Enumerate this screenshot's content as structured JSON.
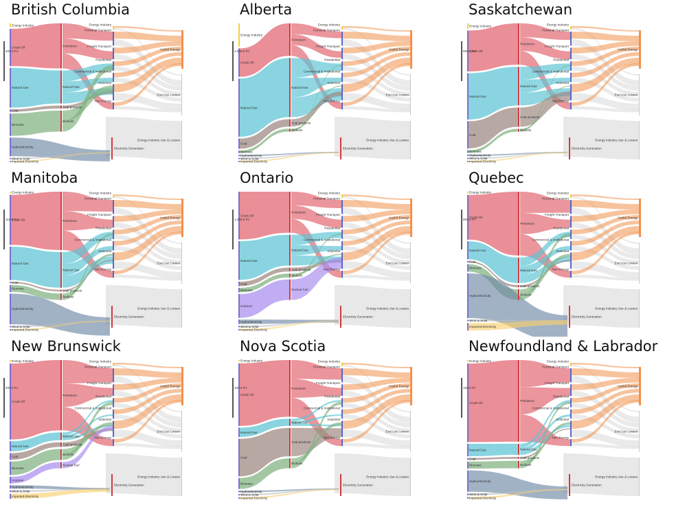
{
  "colors": {
    "energy_industry": "#f2d13b",
    "crude_oil": "#e2636f",
    "natural_gas": "#5bc4d4",
    "coal": "#9c8680",
    "biomass": "#7fb27f",
    "uranium": "#a98ef0",
    "hydroelectricity": "#6e88a6",
    "wind_solar": "#bfbfbf",
    "imported_electricity": "#f8cf6e",
    "electricity_generation": "#f8cf6e",
    "useful_energy": "#f1914d",
    "losses": "#d8d8d8"
  },
  "panels": [
    {
      "title": "British Columbia",
      "scale": "400.0 PJ",
      "sources": [
        {
          "key": "energy_industry",
          "label": "Energy Industry",
          "v": 3
        },
        {
          "key": "crude_oil",
          "label": "Crude Oil",
          "v": 30
        },
        {
          "key": "natural_gas",
          "label": "Natural Gas",
          "v": 32
        },
        {
          "key": "coal",
          "label": "Coal",
          "v": 2
        },
        {
          "key": "biomass",
          "label": "Biomass",
          "v": 18
        },
        {
          "key": "hydroelectricity",
          "label": "Hydroelectricity",
          "v": 15
        },
        {
          "key": "wind_solar",
          "label": "Wind & Solar",
          "v": 1
        },
        {
          "key": "imported_electricity",
          "label": "Imported Electricity",
          "v": 1
        }
      ],
      "mids": [
        {
          "key": "crude_oil",
          "label": "Petroleum",
          "v": 30
        },
        {
          "key": "natural_gas",
          "label": "Natural Gas",
          "v": 22
        },
        {
          "key": "coal",
          "label": "Coal products",
          "v": 2
        },
        {
          "key": "biomass",
          "label": "Biofuels",
          "v": 14
        }
      ]
    },
    {
      "title": "Alberta",
      "scale": "2,000.0 PJ",
      "sources": [
        {
          "key": "energy_industry",
          "label": "Energy Industry",
          "v": 18
        },
        {
          "key": "crude_oil",
          "label": "Crude Oil",
          "v": 22
        },
        {
          "key": "natural_gas",
          "label": "Natural Gas",
          "v": 45
        },
        {
          "key": "coal",
          "label": "Coal",
          "v": 8
        },
        {
          "key": "biomass",
          "label": "Biomass",
          "v": 2
        },
        {
          "key": "hydroelectricity",
          "label": "Hydroelectricity",
          "v": 1
        },
        {
          "key": "wind_solar",
          "label": "Wind & Solar",
          "v": 1
        },
        {
          "key": "imported_electricity",
          "label": "Imported Electricity",
          "v": 1
        }
      ],
      "mids": [
        {
          "key": "crude_oil",
          "label": "Petroleum",
          "v": 22
        },
        {
          "key": "natural_gas",
          "label": "Natural Gas",
          "v": 40
        },
        {
          "key": "coal",
          "label": "Coal products",
          "v": 5
        },
        {
          "key": "biomass",
          "label": "Biofuels",
          "v": 2
        }
      ]
    },
    {
      "title": "Saskatchewan",
      "scale": "800.0 PJ",
      "sources": [
        {
          "key": "energy_industry",
          "label": "Energy Industry",
          "v": 4
        },
        {
          "key": "crude_oil",
          "label": "Crude Oil",
          "v": 30
        },
        {
          "key": "natural_gas",
          "label": "Natural Gas",
          "v": 34
        },
        {
          "key": "coal",
          "label": "Coal",
          "v": 20
        },
        {
          "key": "biomass",
          "label": "Biomass",
          "v": 2
        },
        {
          "key": "hydroelectricity",
          "label": "Hydroelectricity",
          "v": 1
        },
        {
          "key": "wind_solar",
          "label": "Wind & Solar",
          "v": 1
        },
        {
          "key": "imported_electricity",
          "label": "Imported Electricity",
          "v": 1
        }
      ],
      "mids": [
        {
          "key": "crude_oil",
          "label": "Petroleum",
          "v": 30
        },
        {
          "key": "natural_gas",
          "label": "Natural Gas",
          "v": 28
        },
        {
          "key": "coal",
          "label": "Coal products",
          "v": 14
        },
        {
          "key": "biomass",
          "label": "Biofuels",
          "v": 2
        }
      ]
    },
    {
      "title": "Manitoba",
      "scale": "110.0 PJ",
      "sources": [
        {
          "key": "energy_industry",
          "label": "Energy Industry",
          "v": 1
        },
        {
          "key": "crude_oil",
          "label": "Crude Oil",
          "v": 36
        },
        {
          "key": "natural_gas",
          "label": "Natural Gas",
          "v": 24
        },
        {
          "key": "coal",
          "label": "Coal",
          "v": 1
        },
        {
          "key": "biomass",
          "label": "Biomass",
          "v": 5
        },
        {
          "key": "hydroelectricity",
          "label": "Hydroelectricity",
          "v": 22
        },
        {
          "key": "wind_solar",
          "label": "Wind & Solar",
          "v": 1
        },
        {
          "key": "imported_electricity",
          "label": "Imported Electricity",
          "v": 1
        }
      ],
      "mids": [
        {
          "key": "crude_oil",
          "label": "Petroleum",
          "v": 36
        },
        {
          "key": "natural_gas",
          "label": "Natural Gas",
          "v": 22
        },
        {
          "key": "coal",
          "label": "Coal products",
          "v": 1
        },
        {
          "key": "biomass",
          "label": "Biofuels",
          "v": 4
        }
      ]
    },
    {
      "title": "Ontario",
      "scale": "1,000.0 PJ",
      "sources": [
        {
          "key": "crude_oil",
          "label": "Crude Oil",
          "v": 32
        },
        {
          "key": "natural_gas",
          "label": "Natural Gas",
          "v": 26
        },
        {
          "key": "coal",
          "label": "Coal",
          "v": 3
        },
        {
          "key": "biomass",
          "label": "Biomass",
          "v": 3
        },
        {
          "key": "uranium",
          "label": "Uranium",
          "v": 16
        },
        {
          "key": "hydroelectricity",
          "label": "Hydroelectricity",
          "v": 3
        },
        {
          "key": "wind_solar",
          "label": "Wind & Solar",
          "v": 1
        },
        {
          "key": "imported_electricity",
          "label": "Imported Electricity",
          "v": 1
        }
      ],
      "mids": [
        {
          "key": "crude_oil",
          "label": "Petroleum",
          "v": 32
        },
        {
          "key": "natural_gas",
          "label": "Natural Gas",
          "v": 24
        },
        {
          "key": "coal",
          "label": "Coal products",
          "v": 3
        },
        {
          "key": "biomass",
          "label": "Biofuels",
          "v": 3
        },
        {
          "key": "uranium",
          "label": "Nuclear fuel",
          "v": 16
        }
      ]
    },
    {
      "title": "Quebec",
      "scale": "800.0 PJ",
      "sources": [
        {
          "key": "energy_industry",
          "label": "Energy Industry",
          "v": 1
        },
        {
          "key": "crude_oil",
          "label": "Crude Oil",
          "v": 30
        },
        {
          "key": "natural_gas",
          "label": "Natural Gas",
          "v": 12
        },
        {
          "key": "coal",
          "label": "Coal",
          "v": 1
        },
        {
          "key": "biomass",
          "label": "Biomass",
          "v": 5
        },
        {
          "key": "hydroelectricity",
          "label": "Hydroelectricity",
          "v": 30
        },
        {
          "key": "wind_solar",
          "label": "Wind & Solar",
          "v": 1
        },
        {
          "key": "imported_electricity",
          "label": "Imported Electricity",
          "v": 5
        }
      ],
      "mids": [
        {
          "key": "crude_oil",
          "label": "Petroleum",
          "v": 30
        },
        {
          "key": "natural_gas",
          "label": "Natural Gas",
          "v": 12
        },
        {
          "key": "coal",
          "label": "Coal products",
          "v": 1
        },
        {
          "key": "biomass",
          "label": "Biofuels",
          "v": 5
        }
      ]
    },
    {
      "title": "New Brunswick",
      "scale": "200.0 PJ",
      "sources": [
        {
          "key": "energy_industry",
          "label": "Energy Industry",
          "v": 1
        },
        {
          "key": "crude_oil",
          "label": "Crude Oil",
          "v": 45
        },
        {
          "key": "natural_gas",
          "label": "Natural Gas",
          "v": 6
        },
        {
          "key": "coal",
          "label": "Coal",
          "v": 4
        },
        {
          "key": "biomass",
          "label": "Biomass",
          "v": 8
        },
        {
          "key": "uranium",
          "label": "Uranium",
          "v": 4
        },
        {
          "key": "hydroelectricity",
          "label": "Hydroelectricity",
          "v": 2
        },
        {
          "key": "wind_solar",
          "label": "Wind & Solar",
          "v": 1
        },
        {
          "key": "imported_electricity",
          "label": "Imported Electricity",
          "v": 3
        }
      ],
      "mids": [
        {
          "key": "crude_oil",
          "label": "Petroleum",
          "v": 45
        },
        {
          "key": "natural_gas",
          "label": "Natural Gas",
          "v": 5
        },
        {
          "key": "coal",
          "label": "Coal products",
          "v": 3
        },
        {
          "key": "biomass",
          "label": "Biofuels",
          "v": 7
        },
        {
          "key": "uranium",
          "label": "Nuclear fuel",
          "v": 4
        }
      ]
    },
    {
      "title": "Nova Scotia",
      "scale": "100.0 PJ",
      "sources": [
        {
          "key": "energy_industry",
          "label": "Energy Industry",
          "v": 1
        },
        {
          "key": "crude_oil",
          "label": "Crude Oil",
          "v": 40
        },
        {
          "key": "natural_gas",
          "label": "Natural Gas",
          "v": 6
        },
        {
          "key": "coal",
          "label": "Coal",
          "v": 24
        },
        {
          "key": "biomass",
          "label": "Biomass",
          "v": 7
        },
        {
          "key": "hydroelectricity",
          "label": "Hydroelectricity",
          "v": 1
        },
        {
          "key": "wind_solar",
          "label": "Wind & Solar",
          "v": 1
        },
        {
          "key": "imported_electricity",
          "label": "Imported Electricity",
          "v": 1
        }
      ],
      "mids": [
        {
          "key": "crude_oil",
          "label": "Petroleum",
          "v": 40
        },
        {
          "key": "natural_gas",
          "label": "Natural Gas",
          "v": 5
        },
        {
          "key": "coal",
          "label": "Coal products",
          "v": 20
        },
        {
          "key": "biomass",
          "label": "Biofuels",
          "v": 7
        }
      ]
    },
    {
      "title": "Newfoundland & Labrador",
      "scale": "100.0 PJ",
      "sources": [
        {
          "key": "energy_industry",
          "label": "Energy Industry",
          "v": 1
        },
        {
          "key": "crude_oil",
          "label": "Crude Oil",
          "v": 44
        },
        {
          "key": "natural_gas",
          "label": "Natural Gas",
          "v": 7
        },
        {
          "key": "coal",
          "label": "Coal",
          "v": 1
        },
        {
          "key": "biomass",
          "label": "Biomass",
          "v": 4
        },
        {
          "key": "hydroelectricity",
          "label": "Hydroelectricity",
          "v": 12
        },
        {
          "key": "wind_solar",
          "label": "Wind & Solar",
          "v": 1
        },
        {
          "key": "imported_electricity",
          "label": "Imported Electricity",
          "v": 1
        }
      ],
      "mids": [
        {
          "key": "crude_oil",
          "label": "Petroleum",
          "v": 44
        },
        {
          "key": "natural_gas",
          "label": "Natural Gas",
          "v": 6
        },
        {
          "key": "coal",
          "label": "Coal products",
          "v": 1
        },
        {
          "key": "biomass",
          "label": "Biofuels",
          "v": 4
        }
      ]
    }
  ],
  "sectors": [
    {
      "label": "Energy Industry",
      "key": "energy_industry",
      "v": 3
    },
    {
      "label": "Personal Transport",
      "key": "crude_oil",
      "v": 12
    },
    {
      "label": "Freight Transport",
      "key": "crude_oil",
      "v": 10
    },
    {
      "label": "Residential",
      "key": "natural_gas",
      "v": 8
    },
    {
      "label": "Commercial & Institutional",
      "key": "natural_gas",
      "v": 8
    },
    {
      "label": "Industrial",
      "key": "natural_gas",
      "v": 14
    },
    {
      "label": "Non-Energy",
      "key": "hydroelectricity",
      "v": 6
    }
  ],
  "electricity_label": "Electricity Generation",
  "outcomes": [
    {
      "label": "Useful Energy",
      "key": "useful_energy",
      "v": 28
    },
    {
      "label": "End Use Losses",
      "key": "losses",
      "v": 30
    },
    {
      "label": "Energy Industry Use & Losses",
      "key": "losses",
      "v": 28
    }
  ]
}
